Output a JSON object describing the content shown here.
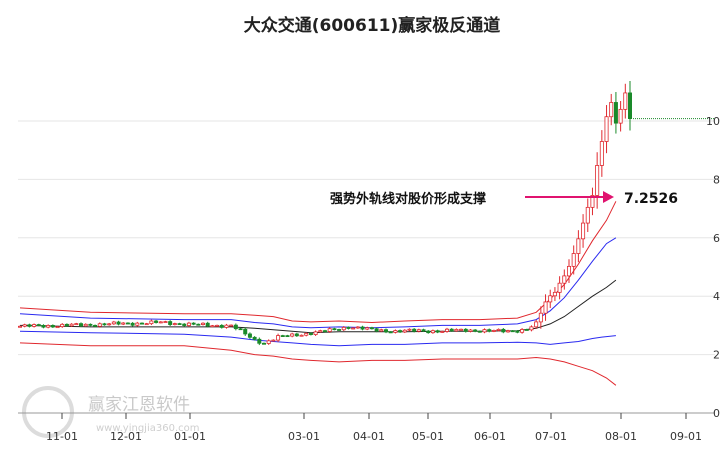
{
  "chart_data": {
    "type": "line",
    "title": "大众交通(600611)赢家极反通道",
    "xlabel": "",
    "ylabel": "",
    "ylim": [
      0,
      12
    ],
    "y_ticks": [
      0,
      2,
      4,
      6,
      8,
      10
    ],
    "x_ticks": [
      "11-01",
      "12-01",
      "01-01",
      "03-01",
      "04-01",
      "05-01",
      "06-01",
      "07-01",
      "08-01",
      "09-01"
    ],
    "grid": true,
    "annotation": {
      "text": "强势外轨线对股价形成支撑",
      "value": "7.2526"
    },
    "series": [
      {
        "color": "#e0282e",
        "points": [
          [
            0,
            3.6
          ],
          [
            15,
            3.45
          ],
          [
            35,
            3.4
          ],
          [
            45,
            3.4
          ],
          [
            50,
            3.35
          ],
          [
            54,
            3.3
          ],
          [
            58,
            3.15
          ],
          [
            62,
            3.12
          ],
          [
            68,
            3.15
          ],
          [
            75,
            3.1
          ],
          [
            82,
            3.15
          ],
          [
            90,
            3.2
          ],
          [
            98,
            3.2
          ],
          [
            106,
            3.25
          ],
          [
            110,
            3.45
          ],
          [
            113,
            3.9
          ],
          [
            116,
            4.4
          ],
          [
            119,
            5.1
          ],
          [
            122,
            5.9
          ],
          [
            125,
            6.6
          ],
          [
            127,
            7.25
          ]
        ]
      },
      {
        "color": "#2a2af0",
        "points": [
          [
            0,
            3.4
          ],
          [
            15,
            3.25
          ],
          [
            35,
            3.2
          ],
          [
            45,
            3.2
          ],
          [
            50,
            3.1
          ],
          [
            54,
            3.05
          ],
          [
            58,
            2.95
          ],
          [
            62,
            2.92
          ],
          [
            68,
            2.95
          ],
          [
            75,
            2.92
          ],
          [
            82,
            2.95
          ],
          [
            90,
            3.0
          ],
          [
            98,
            3.0
          ],
          [
            106,
            3.05
          ],
          [
            110,
            3.2
          ],
          [
            113,
            3.5
          ],
          [
            116,
            3.95
          ],
          [
            119,
            4.55
          ],
          [
            122,
            5.2
          ],
          [
            125,
            5.8
          ],
          [
            127,
            6.0
          ]
        ]
      },
      {
        "color": "#222222",
        "points": [
          [
            0,
            3.0
          ],
          [
            15,
            2.95
          ],
          [
            35,
            2.95
          ],
          [
            45,
            2.95
          ],
          [
            50,
            2.9
          ],
          [
            54,
            2.85
          ],
          [
            58,
            2.8
          ],
          [
            62,
            2.75
          ],
          [
            68,
            2.78
          ],
          [
            75,
            2.78
          ],
          [
            82,
            2.78
          ],
          [
            90,
            2.8
          ],
          [
            98,
            2.8
          ],
          [
            106,
            2.82
          ],
          [
            110,
            2.9
          ],
          [
            113,
            3.05
          ],
          [
            116,
            3.3
          ],
          [
            119,
            3.65
          ],
          [
            122,
            4.0
          ],
          [
            125,
            4.3
          ],
          [
            127,
            4.55
          ]
        ]
      },
      {
        "color": "#2a2af0",
        "points": [
          [
            0,
            2.8
          ],
          [
            15,
            2.75
          ],
          [
            35,
            2.7
          ],
          [
            45,
            2.6
          ],
          [
            50,
            2.5
          ],
          [
            54,
            2.45
          ],
          [
            58,
            2.4
          ],
          [
            62,
            2.35
          ],
          [
            68,
            2.3
          ],
          [
            75,
            2.35
          ],
          [
            82,
            2.35
          ],
          [
            90,
            2.4
          ],
          [
            98,
            2.4
          ],
          [
            106,
            2.42
          ],
          [
            110,
            2.4
          ],
          [
            113,
            2.35
          ],
          [
            116,
            2.4
          ],
          [
            119,
            2.45
          ],
          [
            122,
            2.55
          ],
          [
            124,
            2.6
          ],
          [
            127,
            2.65
          ]
        ]
      },
      {
        "color": "#e0282e",
        "points": [
          [
            0,
            2.4
          ],
          [
            15,
            2.3
          ],
          [
            35,
            2.3
          ],
          [
            45,
            2.15
          ],
          [
            50,
            2.0
          ],
          [
            54,
            1.95
          ],
          [
            58,
            1.85
          ],
          [
            62,
            1.8
          ],
          [
            68,
            1.75
          ],
          [
            75,
            1.8
          ],
          [
            82,
            1.8
          ],
          [
            90,
            1.85
          ],
          [
            98,
            1.85
          ],
          [
            106,
            1.85
          ],
          [
            110,
            1.9
          ],
          [
            113,
            1.85
          ],
          [
            116,
            1.75
          ],
          [
            119,
            1.6
          ],
          [
            122,
            1.45
          ],
          [
            125,
            1.2
          ],
          [
            127,
            0.95
          ]
        ]
      }
    ],
    "candles_close_anchors": [
      [
        0,
        2.97
      ],
      [
        10,
        3.0
      ],
      [
        20,
        3.05
      ],
      [
        30,
        3.1
      ],
      [
        40,
        3.0
      ],
      [
        45,
        3.0
      ],
      [
        50,
        2.5
      ],
      [
        52,
        2.4
      ],
      [
        55,
        2.6
      ],
      [
        60,
        2.7
      ],
      [
        65,
        2.8
      ],
      [
        70,
        2.95
      ],
      [
        75,
        2.85
      ],
      [
        80,
        2.8
      ],
      [
        85,
        2.82
      ],
      [
        90,
        2.8
      ],
      [
        95,
        2.85
      ],
      [
        100,
        2.8
      ],
      [
        105,
        2.82
      ],
      [
        108,
        2.85
      ],
      [
        110,
        3.05
      ],
      [
        112,
        3.8
      ],
      [
        114,
        4.2
      ],
      [
        116,
        4.7
      ],
      [
        118,
        5.4
      ],
      [
        120,
        6.5
      ],
      [
        122,
        7.5
      ],
      [
        123,
        8.5
      ],
      [
        124,
        9.3
      ],
      [
        125,
        10.2
      ],
      [
        126,
        10.6
      ],
      [
        127,
        9.9
      ],
      [
        128,
        10.4
      ],
      [
        129,
        10.9
      ],
      [
        130,
        10.1
      ]
    ]
  }
}
